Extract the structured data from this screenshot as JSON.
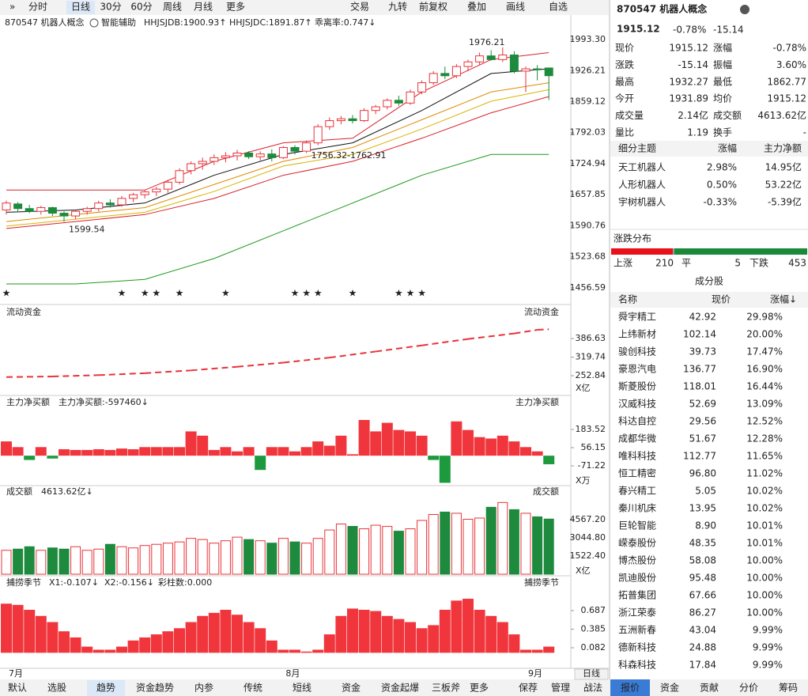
{
  "toolbar": {
    "left": [
      "分时",
      "日线",
      "30分",
      "60分",
      "周线",
      "月线",
      "更多"
    ],
    "active": 1,
    "right": [
      "交易",
      "九转",
      "前复权",
      "叠加",
      "画线",
      "自选"
    ]
  },
  "chart_data": [
    {
      "type": "candlestick",
      "title": "870547 机器人概念",
      "assist": "智能辅助",
      "indicators": [
        {
          "text": "HHJSJDB:1900.93↑",
          "color": "#e08a00"
        },
        {
          "text": "HHJSJDC:1891.87↑",
          "color": "#e8333a"
        },
        {
          "text": "乖离率:0.747↓",
          "color": "#e08a00"
        }
      ],
      "categories": [
        "7月",
        null,
        null,
        null,
        null,
        null,
        null,
        null,
        null,
        null,
        null,
        null,
        null,
        null,
        null,
        null,
        null,
        null,
        null,
        null,
        null,
        null,
        null,
        null,
        "8月",
        null,
        null,
        null,
        null,
        null,
        null,
        null,
        null,
        null,
        null,
        null,
        null,
        null,
        null,
        null,
        null,
        null,
        null,
        null,
        null,
        "9月",
        null,
        null
      ],
      "ohlc": [
        [
          1625,
          1645,
          1615,
          1640
        ],
        [
          1638,
          1642,
          1622,
          1628
        ],
        [
          1628,
          1636,
          1618,
          1622
        ],
        [
          1622,
          1634,
          1615,
          1630
        ],
        [
          1630,
          1632,
          1612,
          1618
        ],
        [
          1618,
          1622,
          1599.54,
          1612
        ],
        [
          1612,
          1625,
          1605,
          1622
        ],
        [
          1622,
          1632,
          1615,
          1628
        ],
        [
          1628,
          1645,
          1622,
          1640
        ],
        [
          1640,
          1648,
          1630,
          1636
        ],
        [
          1636,
          1655,
          1632,
          1650
        ],
        [
          1650,
          1662,
          1642,
          1658
        ],
        [
          1658,
          1668,
          1650,
          1664
        ],
        [
          1664,
          1675,
          1655,
          1670
        ],
        [
          1670,
          1690,
          1662,
          1685
        ],
        [
          1685,
          1715,
          1680,
          1710
        ],
        [
          1710,
          1730,
          1702,
          1725
        ],
        [
          1725,
          1738,
          1712,
          1730
        ],
        [
          1730,
          1745,
          1722,
          1738
        ],
        [
          1738,
          1750,
          1728,
          1742
        ],
        [
          1742,
          1755,
          1732,
          1748
        ],
        [
          1748,
          1752,
          1735,
          1740
        ],
        [
          1740,
          1752,
          1732,
          1746
        ],
        [
          1746,
          1756,
          1730,
          1738
        ],
        [
          1738,
          1762.91,
          1735,
          1760
        ],
        [
          1760,
          1765,
          1745,
          1752
        ],
        [
          1752,
          1775,
          1748,
          1770
        ],
        [
          1770,
          1810,
          1765,
          1805
        ],
        [
          1805,
          1825,
          1798,
          1818
        ],
        [
          1818,
          1828,
          1810,
          1822
        ],
        [
          1822,
          1830,
          1812,
          1818
        ],
        [
          1818,
          1845,
          1815,
          1840
        ],
        [
          1840,
          1852,
          1832,
          1848
        ],
        [
          1848,
          1866,
          1842,
          1862
        ],
        [
          1862,
          1872,
          1850,
          1856
        ],
        [
          1856,
          1885,
          1852,
          1880
        ],
        [
          1880,
          1905,
          1875,
          1900
        ],
        [
          1900,
          1925,
          1895,
          1920
        ],
        [
          1920,
          1935,
          1908,
          1915
        ],
        [
          1915,
          1940,
          1910,
          1935
        ],
        [
          1935,
          1950,
          1925,
          1945
        ],
        [
          1945,
          1965,
          1938,
          1958
        ],
        [
          1958,
          1970,
          1948,
          1950
        ],
        [
          1950,
          1976.21,
          1945,
          1960
        ],
        [
          1960,
          1968,
          1920,
          1925
        ],
        [
          1925,
          1935,
          1880,
          1930
        ],
        [
          1930,
          1938,
          1905,
          1928
        ],
        [
          1931.89,
          1932.27,
          1862.77,
          1915.12
        ]
      ],
      "colors": {
        "up": "#e8333a",
        "down": "#1d8a3d"
      },
      "lines": [
        {
          "color": "#d8202a",
          "x": [
            0,
            6,
            12,
            18,
            24,
            30,
            36,
            42,
            47
          ],
          "values": [
            1668,
            1668,
            1668,
            1730,
            1770,
            1780,
            1880,
            1950,
            1965
          ]
        },
        {
          "color": "#111111",
          "x": [
            0,
            6,
            12,
            18,
            24,
            30,
            36,
            42,
            47
          ],
          "values": [
            1620,
            1625,
            1640,
            1700,
            1745,
            1770,
            1840,
            1920,
            1930
          ]
        },
        {
          "color": "#e08a00",
          "x": [
            0,
            6,
            12,
            18,
            24,
            30,
            36,
            42,
            47
          ],
          "values": [
            1600,
            1615,
            1630,
            1680,
            1730,
            1760,
            1820,
            1880,
            1900
          ]
        },
        {
          "color": "#d9b300",
          "x": [
            0,
            6,
            12,
            18,
            24,
            30,
            36,
            42,
            47
          ],
          "values": [
            1590,
            1605,
            1620,
            1665,
            1720,
            1745,
            1800,
            1860,
            1885
          ]
        },
        {
          "color": "#d8202a",
          "x": [
            0,
            6,
            12,
            18,
            24,
            30,
            36,
            42,
            47
          ],
          "values": [
            1585,
            1600,
            1615,
            1650,
            1700,
            1730,
            1780,
            1835,
            1870
          ]
        },
        {
          "color": "#1a9a1a",
          "x": [
            0,
            6,
            12,
            18,
            24,
            30,
            36,
            42,
            47
          ],
          "values": [
            1465,
            1465,
            1475,
            1520,
            1580,
            1640,
            1700,
            1745,
            1745
          ]
        }
      ],
      "annotations": [
        {
          "text": "1976.21",
          "x": 43,
          "value": 1976.21
        },
        {
          "text": "1599.54",
          "x": 5,
          "value": 1599.54
        },
        {
          "text": "1756.32-1762.91",
          "x": 26,
          "value": 1742
        }
      ],
      "signals": [
        0,
        10,
        12,
        13,
        15,
        19,
        25,
        26,
        27,
        30,
        34,
        35,
        36
      ],
      "signal_color": "#f0a800",
      "ylim": [
        1429.2,
        2010.4
      ],
      "yticks": [
        {
          "value": 1993.3,
          "label": "1993.30"
        },
        1926.21,
        1859.12,
        1792.03,
        1724.94,
        1657.85,
        1590.76,
        1523.68,
        1456.59
      ]
    },
    {
      "type": "line",
      "title": "流动资金",
      "unit": "X亿",
      "color": "#e8333a",
      "x": [
        0,
        4,
        8,
        12,
        16,
        20,
        24,
        28,
        32,
        36,
        40,
        44,
        46,
        47
      ],
      "values": [
        248,
        250,
        255,
        262,
        272,
        285,
        300,
        318,
        340,
        362,
        385,
        405,
        418,
        420
      ],
      "ylim": [
        196,
        458
      ],
      "yticks": [
        386.63,
        319.74,
        252.84
      ]
    },
    {
      "type": "bar",
      "title": "主力净买额",
      "legend": "主力净买额:-597460↓",
      "unit": "X万",
      "colors": {
        "pos": "#f0363c",
        "neg": "#1d9a3d"
      },
      "values": [
        100,
        60,
        -30,
        60,
        -20,
        45,
        40,
        40,
        45,
        40,
        50,
        45,
        60,
        60,
        60,
        60,
        170,
        140,
        40,
        60,
        30,
        60,
        -100,
        60,
        60,
        30,
        60,
        100,
        70,
        140,
        10,
        250,
        170,
        230,
        180,
        170,
        140,
        -30,
        -190,
        240,
        180,
        130,
        120,
        140,
        100,
        60,
        30,
        -60
      ],
      "ylim": [
        -198.6,
        327.5
      ],
      "yticks": [
        183.52,
        56.15,
        -71.22
      ]
    },
    {
      "type": "volume",
      "title": "成交额",
      "legend": "4613.62亿↓",
      "unit": "X亿",
      "values": [
        2000,
        2100,
        2300,
        2000,
        2200,
        2100,
        2300,
        2000,
        2100,
        2500,
        2300,
        2200,
        2400,
        2500,
        2600,
        2700,
        3000,
        2900,
        2600,
        2800,
        3100,
        2900,
        2800,
        2600,
        3000,
        2700,
        2600,
        3000,
        3700,
        4200,
        4000,
        3800,
        4100,
        4000,
        3600,
        3800,
        4500,
        5000,
        5200,
        5100,
        4600,
        4700,
        5600,
        6000,
        5400,
        5100,
        4800,
        4613.62
      ],
      "ylim": [
        0,
        6354
      ],
      "yticks": [
        {
          "value": 4567.2,
          "label": "4567.20"
        },
        {
          "value": 3044.8,
          "label": "3044.80"
        },
        {
          "value": 1522.4,
          "label": "1522.40"
        }
      ]
    },
    {
      "type": "bar",
      "title": "捕捞季节",
      "legend": [
        {
          "text": "X1:-0.107↓",
          "color": "#e08a00"
        },
        {
          "text": "X2:-0.156↓",
          "color": "#cc00cc"
        },
        {
          "text": "彩柱数:0.000",
          "color": "#2a8a2a"
        }
      ],
      "colors": {
        "pos": "#f0363c",
        "neg": "#1d9a3d"
      },
      "values": [
        0.8,
        0.78,
        0.7,
        0.6,
        0.5,
        0.35,
        0.25,
        0.1,
        0.05,
        0.05,
        0.1,
        0.2,
        0.25,
        0.3,
        0.35,
        0.4,
        0.5,
        0.6,
        0.65,
        0.7,
        0.62,
        0.5,
        0.4,
        0.2,
        0.05,
        0.05,
        0.02,
        0.05,
        0.3,
        0.6,
        0.72,
        0.7,
        0.68,
        0.6,
        0.55,
        0.5,
        0.4,
        0.45,
        0.7,
        0.85,
        0.88,
        0.7,
        0.6,
        0.5,
        0.3,
        0.05,
        0.05,
        0.1
      ],
      "ylim": [
        -0.253,
        1.035
      ],
      "yticks": [
        0.687,
        0.385,
        0.082
      ]
    }
  ],
  "period_button": "日线",
  "quote": {
    "title": "870547 机器人概念",
    "price": "1915.12",
    "pct": "-0.78%",
    "chg": "-15.14",
    "rows": [
      [
        {
          "label": "现价",
          "value": "1915.12",
          "tone": "down"
        },
        {
          "label": "涨幅",
          "value": "-0.78%",
          "tone": "down"
        }
      ],
      [
        {
          "label": "涨跌",
          "value": "-15.14",
          "tone": "down"
        },
        {
          "label": "振幅",
          "value": "3.60%",
          "tone": "flat"
        }
      ],
      [
        {
          "label": "最高",
          "value": "1932.27",
          "tone": "down"
        },
        {
          "label": "最低",
          "value": "1862.77",
          "tone": "down"
        }
      ],
      [
        {
          "label": "今开",
          "value": "1931.89",
          "tone": "down"
        },
        {
          "label": "均价",
          "value": "1915.12",
          "tone": "down"
        }
      ],
      [
        {
          "label": "成交量",
          "value": "2.14亿",
          "tone": "flat"
        },
        {
          "label": "成交额",
          "value": "4613.62亿",
          "tone": "flat"
        }
      ],
      [
        {
          "label": "量比",
          "value": "1.19",
          "tone": "flat"
        },
        {
          "label": "换手",
          "value": "-",
          "tone": "flat"
        }
      ]
    ]
  },
  "themes": {
    "header": [
      "细分主题",
      "涨幅",
      "主力净额"
    ],
    "rows": [
      {
        "name": "天工机器人",
        "pct": "2.98%",
        "net": "14.95亿",
        "tone": "up",
        "net_tone": "up"
      },
      {
        "name": "人形机器人",
        "pct": "0.50%",
        "net": "53.22亿",
        "tone": "up",
        "net_tone": "up"
      },
      {
        "name": "宇树机器人",
        "pct": "-0.33%",
        "net": "-5.39亿",
        "tone": "down",
        "net_tone": "down"
      }
    ]
  },
  "distribution": {
    "title": "涨跌分布",
    "up_label": "上涨",
    "up": 210,
    "flat_label": "平",
    "flat": 5,
    "down_label": "下跌",
    "down": 453
  },
  "constituents": {
    "title": "成分股",
    "header": [
      "名称",
      "现价",
      "涨幅↓"
    ],
    "rows": [
      {
        "name": "舜宇精工",
        "price": "42.92",
        "pct": "29.98%",
        "color": "#222"
      },
      {
        "name": "上纬新材",
        "price": "102.14",
        "pct": "20.00%",
        "color": "#2a6fd6"
      },
      {
        "name": "骏创科技",
        "price": "39.73",
        "pct": "17.47%",
        "color": "#222"
      },
      {
        "name": "豪恩汽电",
        "price": "136.77",
        "pct": "16.90%",
        "color": "#222"
      },
      {
        "name": "斯菱股份",
        "price": "118.01",
        "pct": "16.44%",
        "color": "#222"
      },
      {
        "name": "汉威科技",
        "price": "52.69",
        "pct": "13.09%",
        "color": "#222"
      },
      {
        "name": "科达自控",
        "price": "29.56",
        "pct": "12.52%",
        "color": "#222"
      },
      {
        "name": "成都华微",
        "price": "51.67",
        "pct": "12.28%",
        "color": "#222"
      },
      {
        "name": "唯科科技",
        "price": "112.77",
        "pct": "11.65%",
        "color": "#222"
      },
      {
        "name": "恒工精密",
        "price": "96.80",
        "pct": "11.02%",
        "color": "#222"
      },
      {
        "name": "春兴精工",
        "price": "5.05",
        "pct": "10.02%",
        "color": "#c0208a"
      },
      {
        "name": "秦川机床",
        "price": "13.95",
        "pct": "10.02%",
        "color": "#c0208a"
      },
      {
        "name": "巨轮智能",
        "price": "8.90",
        "pct": "10.01%",
        "color": "#2a6fd6"
      },
      {
        "name": "嵘泰股份",
        "price": "48.35",
        "pct": "10.01%",
        "color": "#2a6fd6"
      },
      {
        "name": "博杰股份",
        "price": "58.08",
        "pct": "10.00%",
        "color": "#222"
      },
      {
        "name": "凯迪股份",
        "price": "95.48",
        "pct": "10.00%",
        "color": "#2a6fd6"
      },
      {
        "name": "拓普集团",
        "price": "67.66",
        "pct": "10.00%",
        "color": "#222"
      },
      {
        "name": "浙江荣泰",
        "price": "86.27",
        "pct": "10.00%",
        "color": "#222"
      },
      {
        "name": "五洲新春",
        "price": "43.04",
        "pct": "9.99%",
        "color": "#222"
      },
      {
        "name": "德新科技",
        "price": "24.88",
        "pct": "9.99%",
        "color": "#c0208a"
      },
      {
        "name": "科森科技",
        "price": "17.84",
        "pct": "9.99%",
        "color": "#2a6fd6"
      }
    ]
  },
  "bottom_tabs": {
    "items": [
      "默认",
      "选股",
      "趋势",
      "资金趋势",
      "内参",
      "传统",
      "短线",
      "资金",
      "资金起爆",
      "三板斧",
      "更多",
      "保荐",
      "管理",
      "战法"
    ],
    "active": 2,
    "highlight": [
      11,
      12,
      13
    ]
  },
  "right_tabs": {
    "items": [
      "报价",
      "资金",
      "贡献",
      "分价",
      "筹码"
    ],
    "active": 0
  }
}
